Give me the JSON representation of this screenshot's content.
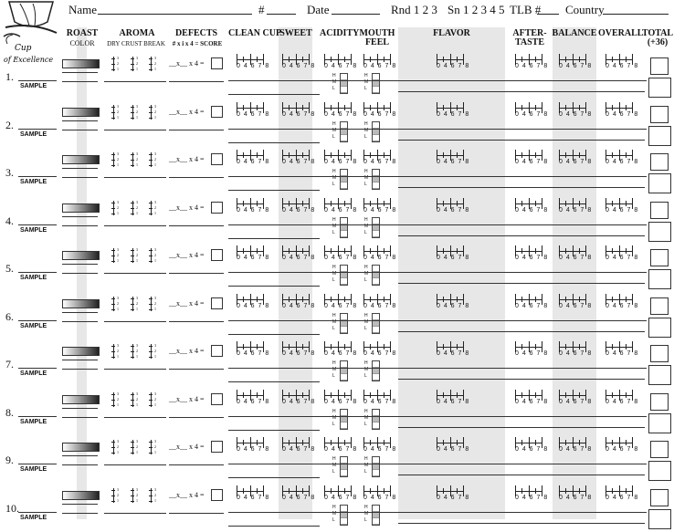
{
  "header": {
    "name_label": "Name",
    "hash_label": "#",
    "date_label": "Date",
    "round_label": "Rnd 1 2 3",
    "session_label": "Sn 1 2 3 4 5",
    "tlb_label": "TLB #",
    "country_label": "Country"
  },
  "logo": {
    "line1": "Cup",
    "line2": "of Excellence"
  },
  "columns": {
    "roast": "ROAST",
    "roast_sub": "COLOR",
    "aroma": "AROMA",
    "aroma_sub": "DRY   CRUST  BREAK",
    "defects": "DEFECTS",
    "defects_sub": "# x i x 4 = SCORE",
    "clean_cup": "CLEAN CUP",
    "sweet": "SWEET",
    "acidity": "ACIDITY",
    "mouthfeel_1": "MOUTH",
    "mouthfeel_2": "FEEL",
    "flavor": "FLAVOR",
    "aftertaste_1": "AFTER-",
    "aftertaste_2": "TASTE",
    "balance": "BALANCE",
    "overall": "OVERALL",
    "total_1": "TOTAL",
    "total_2": "(+36)"
  },
  "scale_numbers": "04678",
  "vscale_numbers": [
    "3",
    "2",
    "1"
  ],
  "hml_labels": [
    "H",
    "M",
    "L"
  ],
  "defect_formula": "__x__ x 4 =",
  "sample_label": "SAMPLE",
  "rows": [
    "1.",
    "2.",
    "3.",
    "4.",
    "5.",
    "6.",
    "7.",
    "8.",
    "9.",
    "10."
  ]
}
